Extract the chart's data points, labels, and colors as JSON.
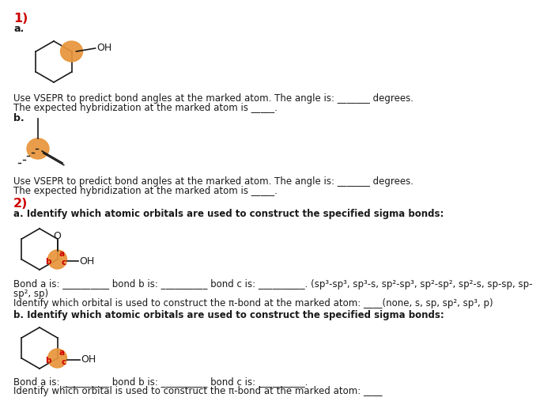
{
  "title_1": "1)",
  "title_2": "2)",
  "section_1a_label": "a.",
  "section_1b_label": "b.",
  "section_2a_label": "a. Identify which atomic orbitals are used to construct the specified sigma bonds:",
  "section_2b_label": "b. Identify which atomic orbitals are used to construct the specified sigma bonds:",
  "text_1a_line1": "Use VSEPR to predict bond angles at the marked atom. The angle is: _______ degrees.",
  "text_1a_line2": "The expected hybridization at the marked atom is _____.",
  "text_1b_line1": "Use VSEPR to predict bond angles at the marked atom. The angle is: _______ degrees.",
  "text_1b_line2": "The expected hybridization at the marked atom is _____.",
  "text_2a_line1": "Bond a is: __________ bond b is: __________ bond c is: __________. (sp³-sp³, sp³-s, sp²-sp³, sp²-sp², sp²-s, sp-sp, sp-",
  "text_2a_line2": "sp², sp)",
  "text_2a_identify": "Identify which orbital is used to construct the π-bond at the marked atom: ____(none, s, sp, sp², sp³, p)",
  "text_2b_line1": "Bond a is: __________ bond b is: __________ bond c is: __________.",
  "text_2b_identify": "Identify which orbital is used to construct the π-bond at the marked atom: ____",
  "orange_color": "#E8953A",
  "red_color": "#CC0000",
  "black_color": "#1A1A1A",
  "bg_color": "#FFFFFF",
  "font_size_body": 8.5,
  "font_size_label": 9.5,
  "font_size_section": 11.5
}
